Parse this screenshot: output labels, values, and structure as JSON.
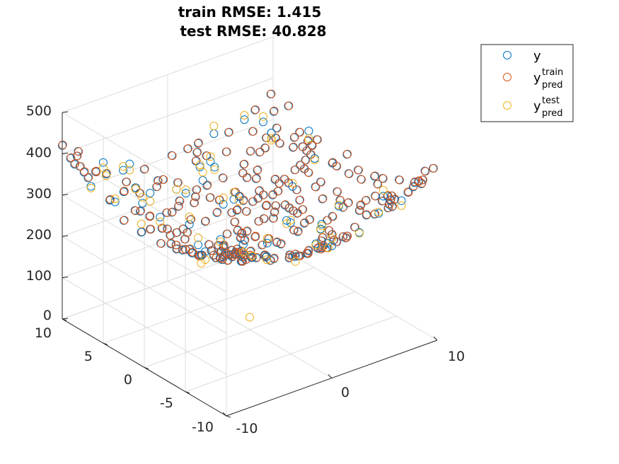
{
  "title_line1": "train RMSE: 1.415",
  "title_line2": "test RMSE: 40.828",
  "legend": {
    "y": {
      "label": "y"
    },
    "train": {
      "base": "y",
      "sup": "train",
      "sub": "pred"
    },
    "test": {
      "base": "y",
      "sup": "test",
      "sub": "pred"
    }
  },
  "colors": {
    "y": "#0072BD",
    "train": "#D95319",
    "test": "#EDB120",
    "axis": "#262626",
    "grid": "#dcdcdc"
  },
  "chart_data": {
    "type": "scatter",
    "dimensions": 3,
    "title": "train RMSE: 1.415\ntest RMSE: 40.828",
    "xlim": [
      -10,
      10
    ],
    "ylim": [
      -10,
      10
    ],
    "zlim": [
      0,
      500
    ],
    "x_ticks": [
      "-10",
      "0",
      "10"
    ],
    "y_ticks": [
      "10",
      "5",
      "0",
      "-5",
      "-10"
    ],
    "z_ticks": [
      "0",
      "100",
      "200",
      "300",
      "400",
      "500"
    ],
    "grid": true,
    "legend_position": "top-right",
    "marker": "open-circle",
    "series_names": [
      "y",
      "y_pred^train",
      "y_pred^test"
    ],
    "surface_note": "data appear to follow z ≈ x^2 + y^2 + ~220 over a grid of x,y in [-10,10]; the single test outlier sits near z ≈ 0",
    "test_outlier": {
      "x": 0,
      "y": 0,
      "z": 30
    }
  }
}
